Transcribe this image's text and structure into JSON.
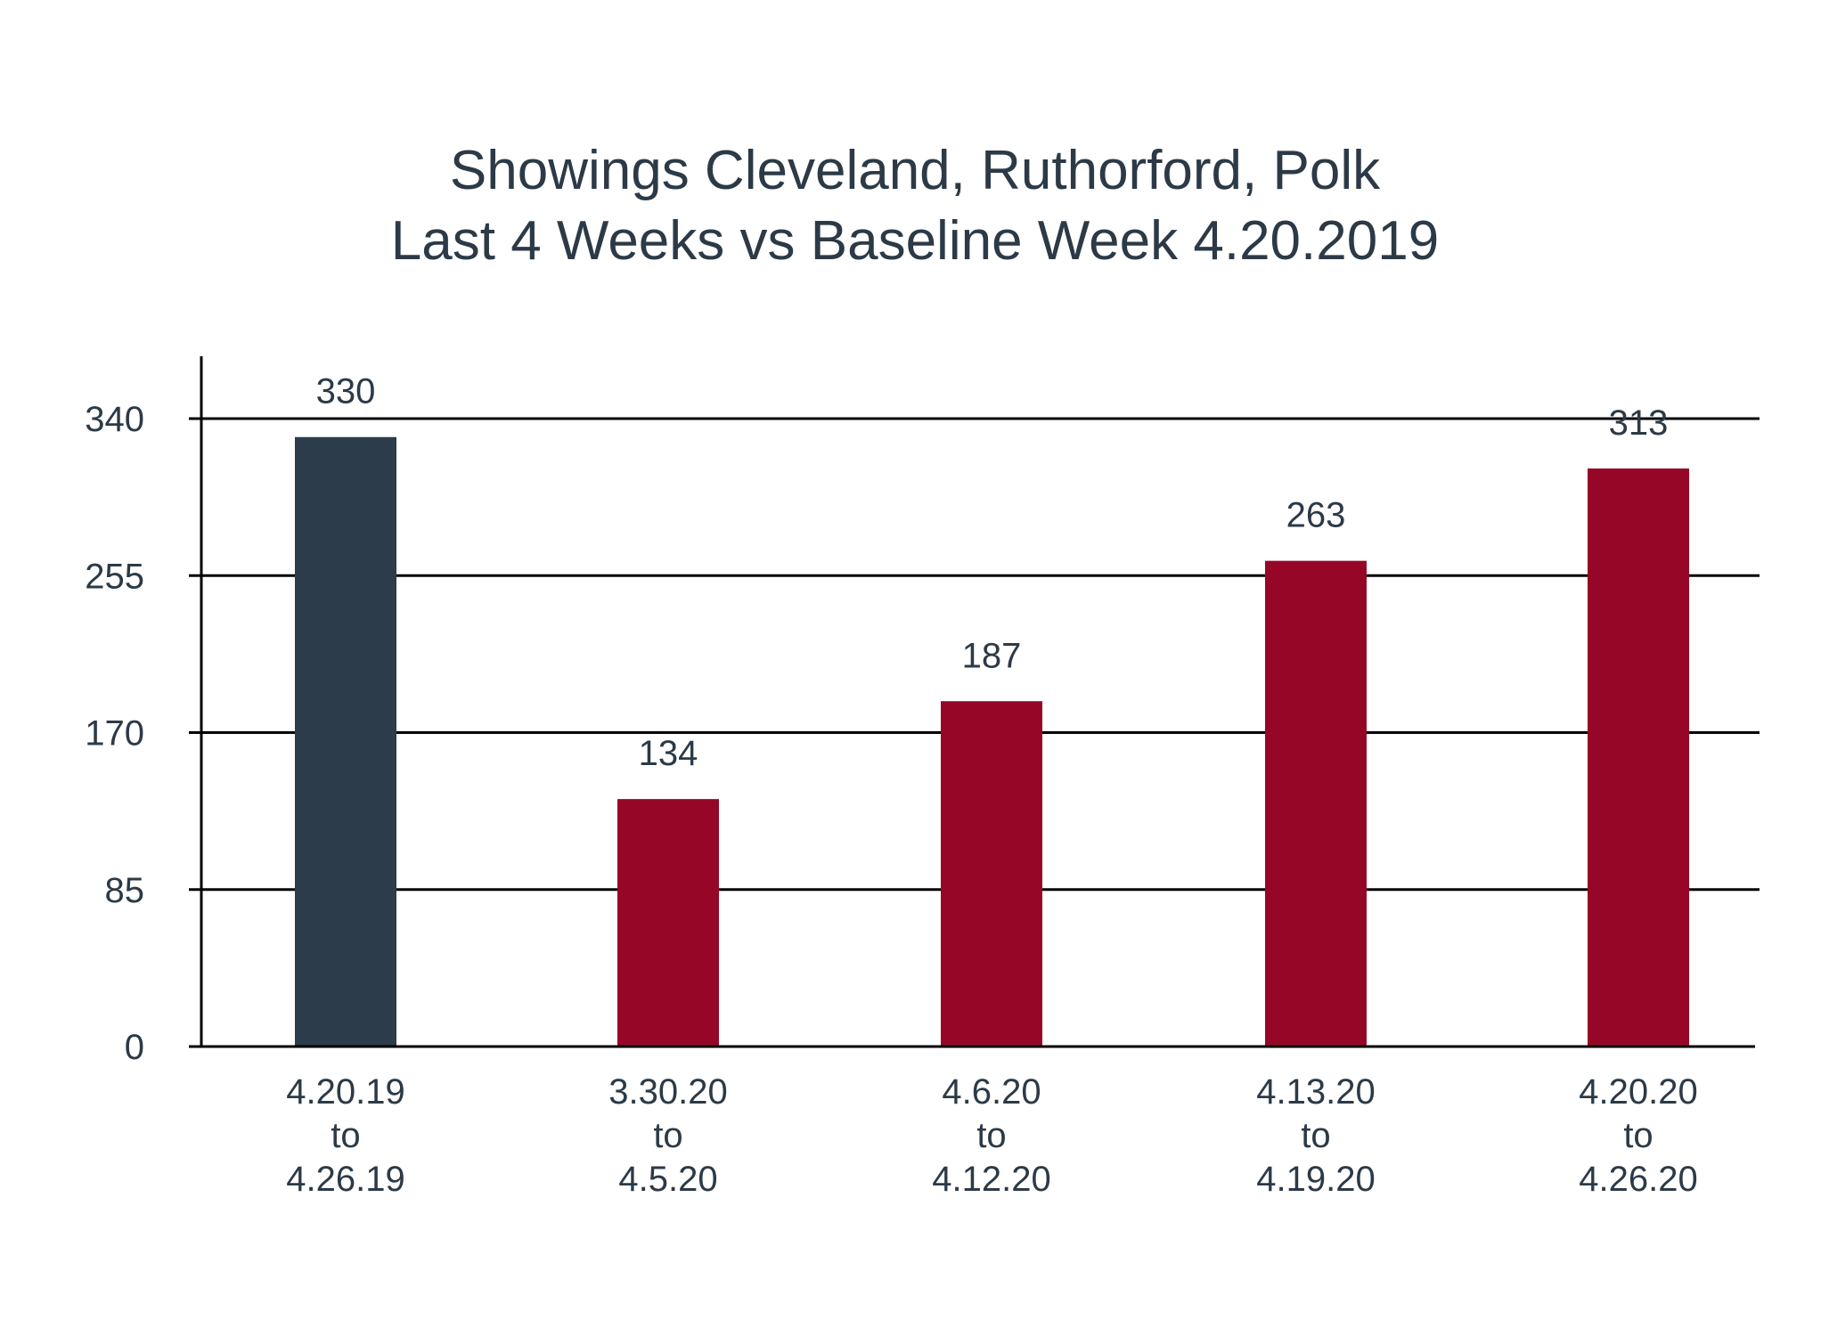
{
  "chart_data": {
    "type": "bar",
    "title_lines": [
      "Showings Cleveland, Ruthorford, Polk",
      "Last 4 Weeks vs Baseline Week 4.20.2019"
    ],
    "xlabel": "",
    "ylabel": "",
    "categories": [
      [
        "4.20.19",
        "to",
        "4.26.19"
      ],
      [
        "3.30.20",
        "to",
        "4.5.20"
      ],
      [
        "4.6.20",
        "to",
        "4.12.20"
      ],
      [
        "4.13.20",
        "to",
        "4.19.20"
      ],
      [
        "4.20.20",
        "to",
        "4.26.20"
      ]
    ],
    "values": [
      330,
      134,
      187,
      263,
      313
    ],
    "data_labels": [
      "330",
      "134",
      "187",
      "263",
      "313"
    ],
    "yticks": [
      0,
      85,
      170,
      255,
      340
    ],
    "ylim": [
      0,
      340
    ],
    "grid": true,
    "legend": "none",
    "colors": {
      "baseline": "#2c3c4b",
      "recent": "#960727",
      "text": "#2c3a47",
      "grid": "#000000"
    }
  }
}
